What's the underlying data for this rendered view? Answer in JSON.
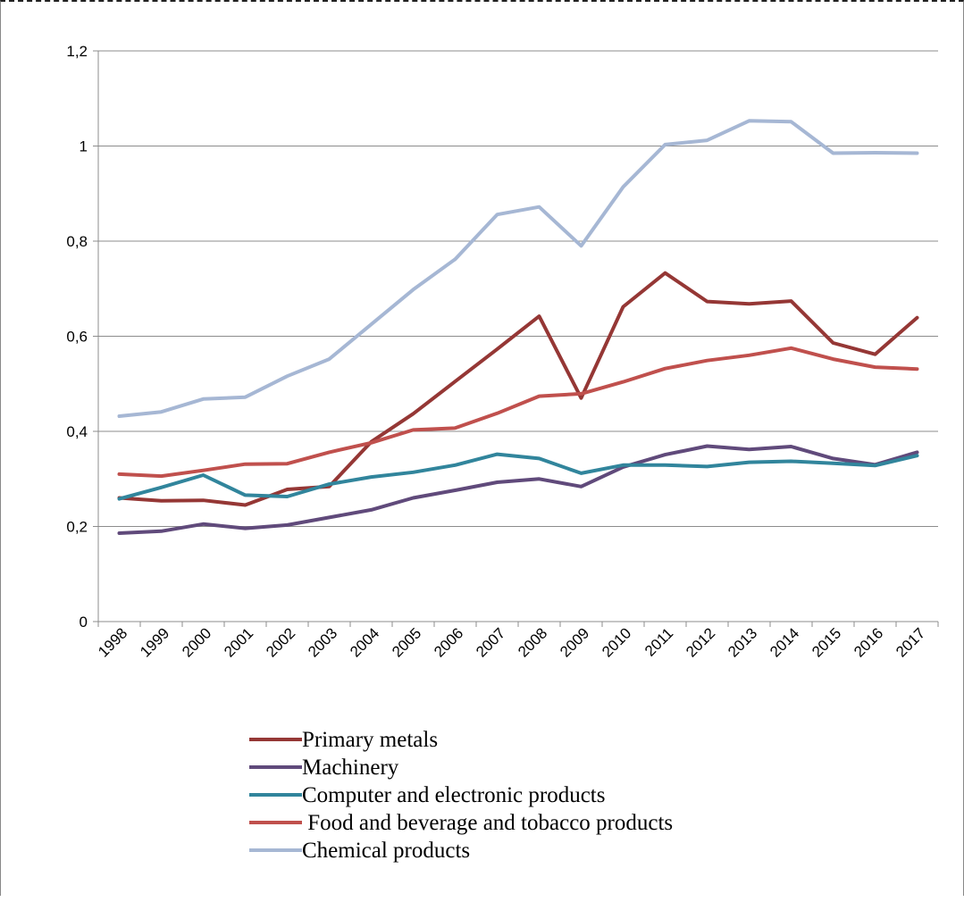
{
  "chart_data": {
    "type": "line",
    "title": "",
    "xlabel": "",
    "ylabel": "",
    "ylim": [
      0,
      1.2
    ],
    "yticks": [
      "0",
      "0,2",
      "0,4",
      "0,6",
      "0,8",
      "1",
      "1,2"
    ],
    "grid": "horizontal",
    "legend_position": "bottom",
    "x": [
      "1998",
      "1999",
      "2000",
      "2001",
      "2002",
      "2003",
      "2004",
      "2005",
      "2006",
      "2007",
      "2008",
      "2009",
      "2010",
      "2011",
      "2012",
      "2013",
      "2014",
      "2015",
      "2016",
      "2017"
    ],
    "series": [
      {
        "name": "Primary metals",
        "color": "#953735",
        "values": [
          0.26,
          0.254,
          0.255,
          0.245,
          0.278,
          0.284,
          0.378,
          0.437,
          0.505,
          0.573,
          0.642,
          0.47,
          0.662,
          0.733,
          0.673,
          0.668,
          0.674,
          0.586,
          0.562,
          0.639
        ]
      },
      {
        "name": "Machinery",
        "color": "#604A7B",
        "values": [
          0.186,
          0.19,
          0.205,
          0.196,
          0.203,
          0.219,
          0.235,
          0.26,
          0.276,
          0.293,
          0.3,
          0.284,
          0.325,
          0.351,
          0.369,
          0.362,
          0.368,
          0.343,
          0.33,
          0.356
        ]
      },
      {
        "name": "Computer and electronic products",
        "color": "#31859C",
        "values": [
          0.258,
          0.282,
          0.308,
          0.266,
          0.263,
          0.289,
          0.304,
          0.314,
          0.329,
          0.352,
          0.343,
          0.312,
          0.329,
          0.329,
          0.326,
          0.335,
          0.337,
          0.333,
          0.328,
          0.349
        ]
      },
      {
        "name": " Food and beverage and tobacco products",
        "color": "#C0504D",
        "values": [
          0.31,
          0.306,
          0.318,
          0.331,
          0.332,
          0.356,
          0.376,
          0.403,
          0.407,
          0.438,
          0.474,
          0.479,
          0.504,
          0.532,
          0.549,
          0.56,
          0.575,
          0.552,
          0.535,
          0.531
        ]
      },
      {
        "name": "Chemical products",
        "color": "#A6B7D4",
        "values": [
          0.432,
          0.441,
          0.468,
          0.472,
          0.516,
          0.552,
          0.625,
          0.698,
          0.762,
          0.856,
          0.872,
          0.79,
          0.914,
          1.003,
          1.012,
          1.053,
          1.051,
          0.985,
          0.986,
          0.985
        ]
      }
    ]
  }
}
